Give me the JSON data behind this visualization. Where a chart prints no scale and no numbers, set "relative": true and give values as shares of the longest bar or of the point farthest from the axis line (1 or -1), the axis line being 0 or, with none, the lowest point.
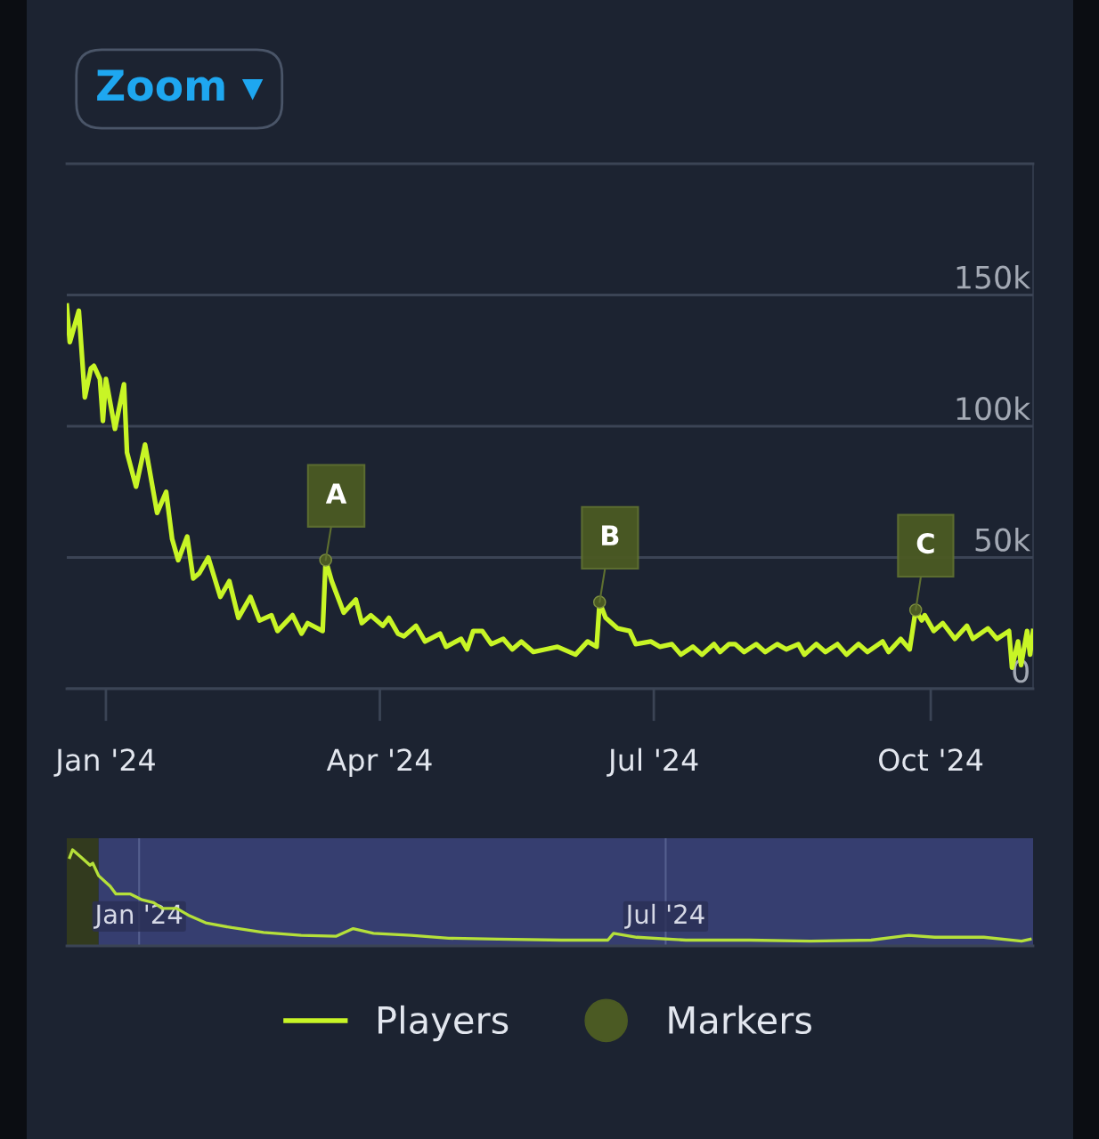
{
  "chart_data": [
    {
      "type": "line",
      "annotations": [
        "Zoom ▾"
      ],
      "xlim": [
        "2023-12-19",
        "2024-11-04"
      ],
      "xticks": [
        {
          "value": "2024-01-01",
          "label": "Jan '24"
        },
        {
          "value": "2024-04-01",
          "label": "Apr '24"
        },
        {
          "value": "2024-07-01",
          "label": "Jul '24"
        },
        {
          "value": "2024-10-01",
          "label": "Oct '24"
        }
      ],
      "ylim": [
        0,
        200000
      ],
      "yticks": [
        0,
        {
          "value": 50000,
          "label": "50k"
        },
        {
          "value": 100000,
          "label": "100k"
        },
        {
          "value": 150000,
          "label": "150k"
        }
      ],
      "grid": "y",
      "legend": "bottom",
      "series": [
        {
          "name": "Players",
          "color": "#c8f526",
          "x": [
            "2023-12-19",
            "2023-12-20",
            "2023-12-23",
            "2023-12-25",
            "2023-12-27",
            "2023-12-28",
            "2023-12-30",
            "2023-12-31",
            "2024-01-01",
            "2024-01-04",
            "2024-01-07",
            "2024-01-08",
            "2024-01-11",
            "2024-01-14",
            "2024-01-18",
            "2024-01-21",
            "2024-01-23",
            "2024-01-25",
            "2024-01-28",
            "2024-01-30",
            "2024-02-01",
            "2024-02-04",
            "2024-02-08",
            "2024-02-11",
            "2024-02-14",
            "2024-02-18",
            "2024-02-21",
            "2024-02-25",
            "2024-02-27",
            "2024-03-03",
            "2024-03-06",
            "2024-03-08",
            "2024-03-13",
            "2024-03-14",
            "2024-03-16",
            "2024-03-20",
            "2024-03-24",
            "2024-03-26",
            "2024-03-29",
            "2024-04-02",
            "2024-04-04",
            "2024-04-07",
            "2024-04-09",
            "2024-04-13",
            "2024-04-16",
            "2024-04-21",
            "2024-04-23",
            "2024-04-28",
            "2024-04-30",
            "2024-05-02",
            "2024-05-05",
            "2024-05-08",
            "2024-05-12",
            "2024-05-15",
            "2024-05-18",
            "2024-05-22",
            "2024-05-26",
            "2024-05-30",
            "2024-06-05",
            "2024-06-09",
            "2024-06-12",
            "2024-06-13",
            "2024-06-15",
            "2024-06-19",
            "2024-06-23",
            "2024-06-25",
            "2024-06-30",
            "2024-07-03",
            "2024-07-07",
            "2024-07-10",
            "2024-07-14",
            "2024-07-17",
            "2024-07-21",
            "2024-07-23",
            "2024-07-26",
            "2024-07-28",
            "2024-07-31",
            "2024-08-04",
            "2024-08-07",
            "2024-08-11",
            "2024-08-14",
            "2024-08-18",
            "2024-08-20",
            "2024-08-24",
            "2024-08-27",
            "2024-08-31",
            "2024-09-03",
            "2024-09-07",
            "2024-09-10",
            "2024-09-15",
            "2024-09-17",
            "2024-09-21",
            "2024-09-24",
            "2024-09-26",
            "2024-09-28",
            "2024-09-29",
            "2024-10-02",
            "2024-10-05",
            "2024-10-09",
            "2024-10-13",
            "2024-10-15",
            "2024-10-20",
            "2024-10-23",
            "2024-10-27",
            "2024-10-28",
            "2024-10-30",
            "2024-10-31",
            "2024-11-02",
            "2024-11-03",
            "2024-11-04"
          ],
          "values": [
            146000,
            132000,
            144000,
            111000,
            122000,
            123000,
            118000,
            102000,
            118000,
            99000,
            116000,
            90000,
            77000,
            93000,
            67000,
            75000,
            57000,
            49000,
            58000,
            42000,
            44000,
            50000,
            35000,
            41000,
            27000,
            35000,
            26000,
            28000,
            22000,
            28000,
            21000,
            25000,
            22000,
            49000,
            41000,
            29000,
            34000,
            25000,
            28000,
            24000,
            27000,
            21000,
            20000,
            24000,
            18000,
            21000,
            16000,
            19000,
            15000,
            22000,
            22000,
            17000,
            19000,
            15000,
            18000,
            14000,
            15000,
            16000,
            13000,
            18000,
            16000,
            33000,
            27000,
            23000,
            22000,
            17000,
            18000,
            16000,
            17000,
            13000,
            16000,
            13000,
            17000,
            14000,
            17000,
            17000,
            14000,
            17000,
            14000,
            17000,
            15000,
            17000,
            13000,
            17000,
            14000,
            17000,
            13000,
            17000,
            14000,
            18000,
            14000,
            19000,
            15000,
            30000,
            26000,
            28000,
            22000,
            25000,
            19000,
            24000,
            19000,
            23000,
            19000,
            22000,
            8000,
            18000,
            9000,
            22000,
            13000,
            22000
          ]
        },
        {
          "name": "Markers",
          "type": "scatter",
          "color": "#4b5a23",
          "marker": "circle",
          "x": [
            "2024-03-14",
            "2024-06-13",
            "2024-09-26"
          ],
          "values": [
            49000,
            33000,
            30000
          ],
          "value_labels": [
            "A",
            "B",
            "C"
          ]
        }
      ]
    },
    {
      "type": "line",
      "relative": true,
      "xlim": [
        "2023-12-07",
        "2024-11-05"
      ],
      "xticks": [
        {
          "value": "2024-01-01",
          "label": "Jan '24"
        },
        {
          "value": "2024-07-01",
          "label": "Jul '24"
        }
      ],
      "grid": "x",
      "bands": [
        {
          "axis": "x",
          "from": "2023-12-07",
          "to": "2023-12-18",
          "color": "#323a1e"
        },
        {
          "axis": "x",
          "from": "2023-12-18",
          "to": "2024-11-05",
          "color": "#363e70"
        }
      ],
      "series": [
        {
          "color": "#b5e03a",
          "x": [
            "2023-12-08",
            "2023-12-09",
            "2023-12-12",
            "2023-12-15",
            "2023-12-16",
            "2023-12-18",
            "2023-12-22",
            "2023-12-24",
            "2023-12-29",
            "2024-01-02",
            "2024-01-06",
            "2024-01-09",
            "2024-01-14",
            "2024-01-18",
            "2024-01-24",
            "2024-02-02",
            "2024-02-13",
            "2024-02-26",
            "2024-03-09",
            "2024-03-15",
            "2024-03-22",
            "2024-04-04",
            "2024-04-17",
            "2024-05-04",
            "2024-05-26",
            "2024-06-11",
            "2024-06-13",
            "2024-06-21",
            "2024-07-08",
            "2024-07-30",
            "2024-08-20",
            "2024-09-10",
            "2024-09-23",
            "2024-10-02",
            "2024-10-19",
            "2024-11-01",
            "2024-11-04"
          ],
          "values": [
            0.92,
            1.0,
            0.92,
            0.84,
            0.86,
            0.73,
            0.62,
            0.54,
            0.54,
            0.48,
            0.45,
            0.39,
            0.39,
            0.32,
            0.24,
            0.19,
            0.14,
            0.11,
            0.1,
            0.18,
            0.13,
            0.11,
            0.08,
            0.07,
            0.06,
            0.06,
            0.13,
            0.09,
            0.06,
            0.06,
            0.05,
            0.06,
            0.11,
            0.09,
            0.09,
            0.05,
            0.07
          ]
        }
      ]
    }
  ]
}
